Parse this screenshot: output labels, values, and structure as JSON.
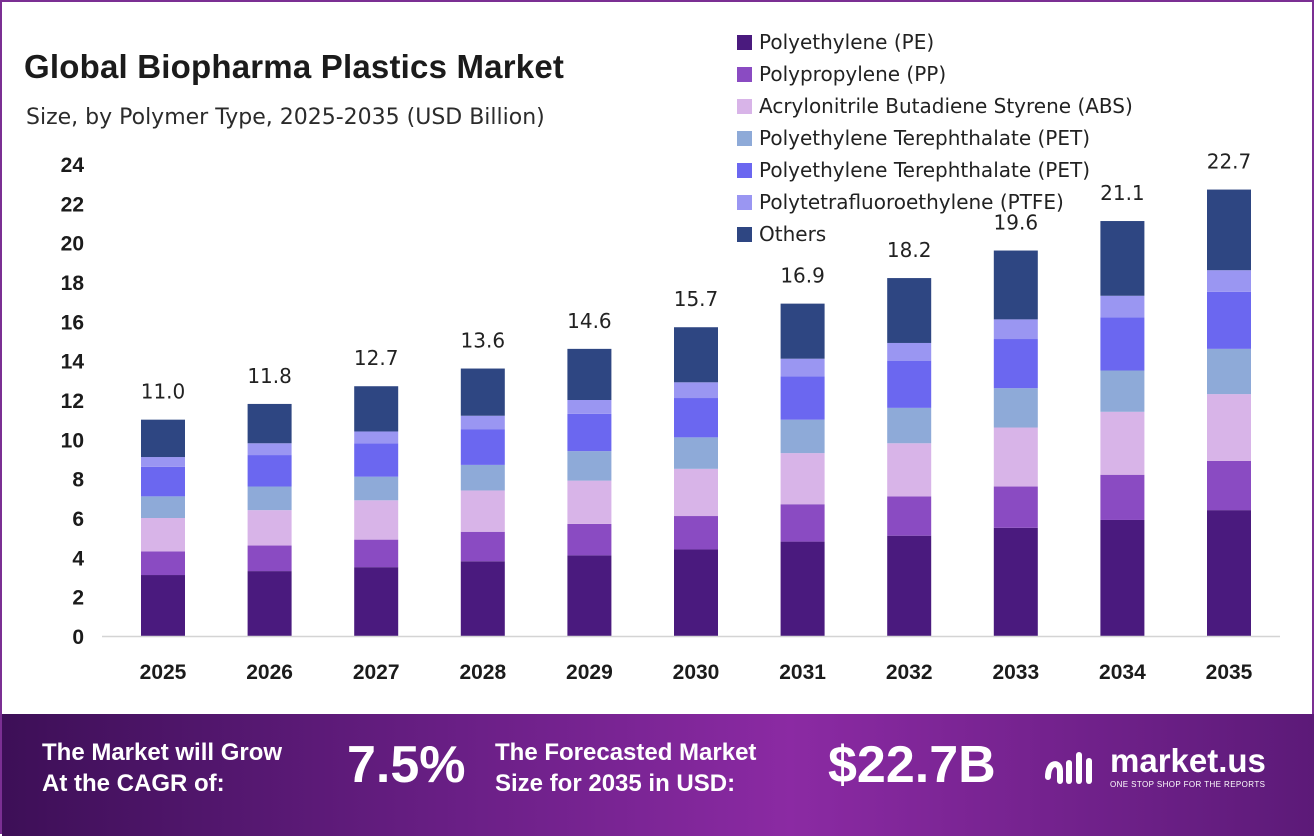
{
  "title": "Global Biopharma Plastics Market",
  "subtitle": "Size, by Polymer Type, 2025-2035 (USD Billion)",
  "banner": {
    "grow_line1": "The Market will Grow",
    "grow_line2": "At the CAGR of:",
    "cagr": "7.5%",
    "forecast_line1": "The Forecasted Market",
    "forecast_line2": "Size for 2035 in USD:",
    "forecast_value": "$22.7B",
    "logo_name": "market.us",
    "logo_tagline": "ONE STOP SHOP FOR THE REPORTS",
    "logo_icon": "market-us-logo-icon"
  },
  "chart_data": {
    "type": "bar",
    "stacked": true,
    "categories": [
      "2025",
      "2026",
      "2027",
      "2028",
      "2029",
      "2030",
      "2031",
      "2032",
      "2033",
      "2034",
      "2035"
    ],
    "totals": [
      "11.0",
      "11.8",
      "12.7",
      "13.6",
      "14.6",
      "15.7",
      "16.9",
      "18.2",
      "19.6",
      "21.1",
      "22.7"
    ],
    "ylim": [
      0,
      24
    ],
    "yticks": [
      0,
      2,
      4,
      6,
      8,
      10,
      12,
      14,
      16,
      18,
      20,
      22,
      24
    ],
    "grid": false,
    "legend_position": "top-right",
    "series": [
      {
        "name": "Polyethylene (PE)",
        "color": "#4a1a7e",
        "values": [
          3.1,
          3.3,
          3.5,
          3.8,
          4.1,
          4.4,
          4.8,
          5.1,
          5.5,
          5.9,
          6.4
        ]
      },
      {
        "name": "Polypropylene (PP)",
        "color": "#8a4bc2",
        "values": [
          1.2,
          1.3,
          1.4,
          1.5,
          1.6,
          1.7,
          1.9,
          2.0,
          2.1,
          2.3,
          2.5
        ]
      },
      {
        "name": "Acrylonitrile Butadiene Styrene (ABS)",
        "color": "#d8b4e8",
        "values": [
          1.7,
          1.8,
          2.0,
          2.1,
          2.2,
          2.4,
          2.6,
          2.7,
          3.0,
          3.2,
          3.4
        ]
      },
      {
        "name": "Polyethylene Terephthalate (PET)",
        "color": "#8eaad8",
        "values": [
          1.1,
          1.2,
          1.2,
          1.3,
          1.5,
          1.6,
          1.7,
          1.8,
          2.0,
          2.1,
          2.3
        ]
      },
      {
        "name": "Polyethylene Terephthalate (PET)",
        "color": "#6b67f0",
        "values": [
          1.5,
          1.6,
          1.7,
          1.8,
          1.9,
          2.0,
          2.2,
          2.4,
          2.5,
          2.7,
          2.9
        ]
      },
      {
        "name": "Polytetrafluoroethylene (PTFE)",
        "color": "#9a96f2",
        "values": [
          0.5,
          0.6,
          0.6,
          0.7,
          0.7,
          0.8,
          0.9,
          0.9,
          1.0,
          1.1,
          1.1
        ]
      },
      {
        "name": "Others",
        "color": "#2e4682",
        "values": [
          1.9,
          2.0,
          2.3,
          2.4,
          2.6,
          2.8,
          2.8,
          3.3,
          3.5,
          3.8,
          4.1
        ]
      }
    ]
  }
}
